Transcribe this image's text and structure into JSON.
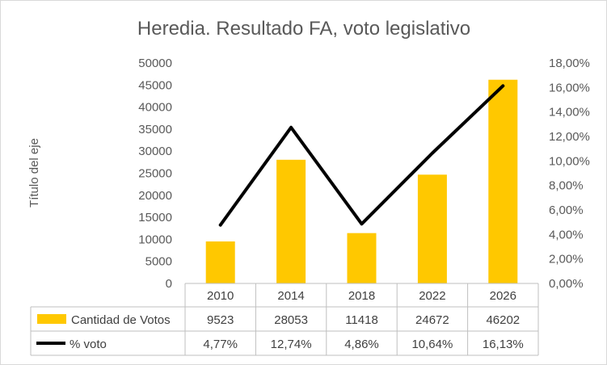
{
  "chart_data": {
    "type": "bar",
    "title": "Heredia. Resultado FA, voto legislativo",
    "ylabel": "Título del eje",
    "categories": [
      "2010",
      "2014",
      "2018",
      "2022",
      "2026"
    ],
    "ylim": [
      0,
      50000
    ],
    "y_ticks": [
      "0",
      "5000",
      "10000",
      "15000",
      "20000",
      "25000",
      "30000",
      "35000",
      "40000",
      "45000",
      "50000"
    ],
    "y2lim": [
      0,
      0.18
    ],
    "y2_ticks": [
      "0,00%",
      "2,00%",
      "4,00%",
      "6,00%",
      "8,00%",
      "10,00%",
      "12,00%",
      "14,00%",
      "16,00%",
      "18,00%"
    ],
    "grid": false,
    "legend": "data-table",
    "series": [
      {
        "name": "Cantidad de Votos",
        "type": "bar",
        "axis": "left",
        "color": "#ffc800",
        "values": [
          9523,
          28053,
          11418,
          24672,
          46202
        ],
        "labels": [
          "9523",
          "28053",
          "11418",
          "24672",
          "46202"
        ]
      },
      {
        "name": "% voto",
        "type": "line",
        "axis": "right",
        "color": "#000000",
        "values": [
          0.0477,
          0.1274,
          0.0486,
          0.1064,
          0.1613
        ],
        "labels": [
          "4,77%",
          "12,74%",
          "4,86%",
          "10,64%",
          "16,13%"
        ]
      }
    ]
  }
}
